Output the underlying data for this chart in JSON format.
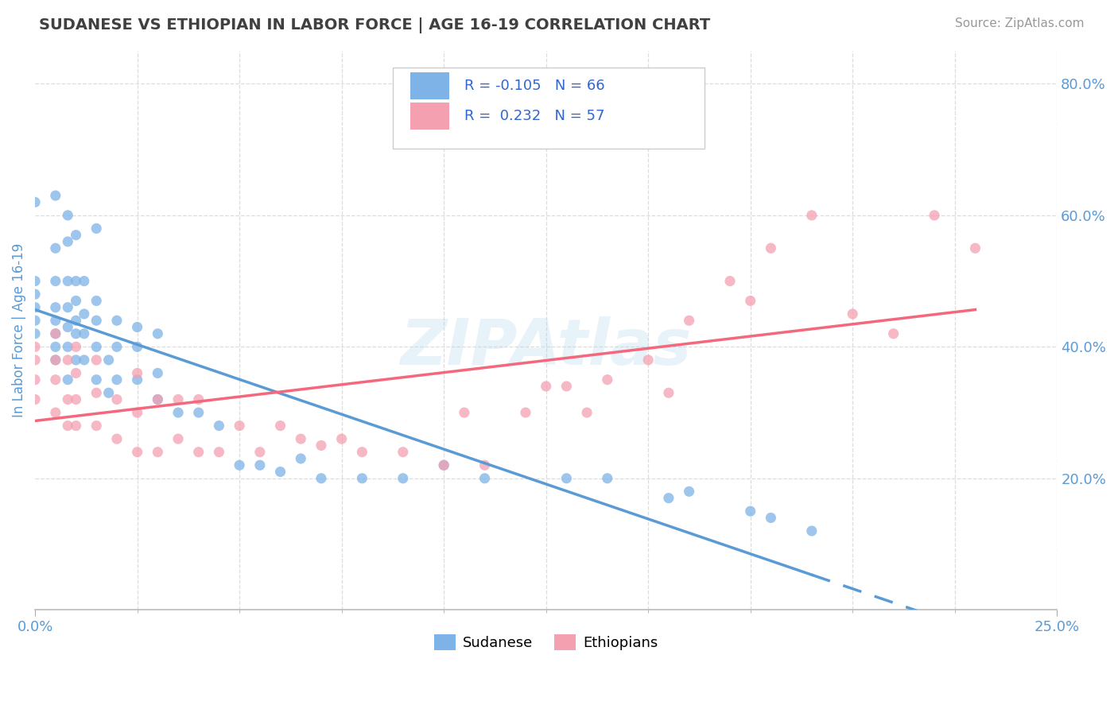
{
  "title": "SUDANESE VS ETHIOPIAN IN LABOR FORCE | AGE 16-19 CORRELATION CHART",
  "source_text": "Source: ZipAtlas.com",
  "ylabel": "In Labor Force | Age 16-19",
  "xlim": [
    0.0,
    0.25
  ],
  "ylim": [
    0.0,
    0.85
  ],
  "ytick_right_labels": [
    "20.0%",
    "40.0%",
    "60.0%",
    "80.0%"
  ],
  "ytick_right_values": [
    0.2,
    0.4,
    0.6,
    0.8
  ],
  "legend_r_sudanese": "-0.105",
  "legend_n_sudanese": "66",
  "legend_r_ethiopian": "0.232",
  "legend_n_ethiopian": "57",
  "sudanese_color": "#7EB3E8",
  "ethiopian_color": "#F4A0B0",
  "sudanese_line_color": "#5B9BD5",
  "ethiopian_line_color": "#F4687D",
  "watermark_text": "ZIPAtlas",
  "background_color": "#FFFFFF",
  "grid_color": "#DDDDDD",
  "title_color": "#404040",
  "axis_label_color": "#5B9BD5",
  "sudanese_x": [
    0.0,
    0.0,
    0.0,
    0.0,
    0.0,
    0.0,
    0.005,
    0.005,
    0.005,
    0.005,
    0.005,
    0.005,
    0.005,
    0.005,
    0.008,
    0.008,
    0.008,
    0.008,
    0.008,
    0.008,
    0.008,
    0.01,
    0.01,
    0.01,
    0.01,
    0.01,
    0.01,
    0.012,
    0.012,
    0.012,
    0.012,
    0.015,
    0.015,
    0.015,
    0.015,
    0.015,
    0.018,
    0.018,
    0.02,
    0.02,
    0.02,
    0.025,
    0.025,
    0.025,
    0.03,
    0.03,
    0.03,
    0.035,
    0.04,
    0.045,
    0.05,
    0.055,
    0.06,
    0.065,
    0.07,
    0.08,
    0.09,
    0.1,
    0.11,
    0.13,
    0.14,
    0.155,
    0.16,
    0.175,
    0.18,
    0.19
  ],
  "sudanese_y": [
    0.42,
    0.44,
    0.46,
    0.48,
    0.5,
    0.62,
    0.38,
    0.4,
    0.42,
    0.44,
    0.46,
    0.5,
    0.55,
    0.63,
    0.35,
    0.4,
    0.43,
    0.46,
    0.5,
    0.56,
    0.6,
    0.38,
    0.42,
    0.44,
    0.47,
    0.5,
    0.57,
    0.38,
    0.42,
    0.45,
    0.5,
    0.35,
    0.4,
    0.44,
    0.47,
    0.58,
    0.33,
    0.38,
    0.35,
    0.4,
    0.44,
    0.35,
    0.4,
    0.43,
    0.32,
    0.36,
    0.42,
    0.3,
    0.3,
    0.28,
    0.22,
    0.22,
    0.21,
    0.23,
    0.2,
    0.2,
    0.2,
    0.22,
    0.2,
    0.2,
    0.2,
    0.17,
    0.18,
    0.15,
    0.14,
    0.12
  ],
  "ethiopian_x": [
    0.0,
    0.0,
    0.0,
    0.0,
    0.005,
    0.005,
    0.005,
    0.005,
    0.008,
    0.008,
    0.008,
    0.01,
    0.01,
    0.01,
    0.01,
    0.015,
    0.015,
    0.015,
    0.02,
    0.02,
    0.025,
    0.025,
    0.025,
    0.03,
    0.03,
    0.035,
    0.035,
    0.04,
    0.04,
    0.045,
    0.05,
    0.055,
    0.06,
    0.065,
    0.07,
    0.075,
    0.08,
    0.09,
    0.1,
    0.105,
    0.11,
    0.12,
    0.125,
    0.13,
    0.135,
    0.14,
    0.15,
    0.155,
    0.16,
    0.17,
    0.175,
    0.18,
    0.19,
    0.2,
    0.21,
    0.22,
    0.23
  ],
  "ethiopian_y": [
    0.32,
    0.35,
    0.38,
    0.4,
    0.3,
    0.35,
    0.38,
    0.42,
    0.28,
    0.32,
    0.38,
    0.28,
    0.32,
    0.36,
    0.4,
    0.28,
    0.33,
    0.38,
    0.26,
    0.32,
    0.24,
    0.3,
    0.36,
    0.24,
    0.32,
    0.26,
    0.32,
    0.24,
    0.32,
    0.24,
    0.28,
    0.24,
    0.28,
    0.26,
    0.25,
    0.26,
    0.24,
    0.24,
    0.22,
    0.3,
    0.22,
    0.3,
    0.34,
    0.34,
    0.3,
    0.35,
    0.38,
    0.33,
    0.44,
    0.5,
    0.47,
    0.55,
    0.6,
    0.45,
    0.42,
    0.6,
    0.55
  ]
}
